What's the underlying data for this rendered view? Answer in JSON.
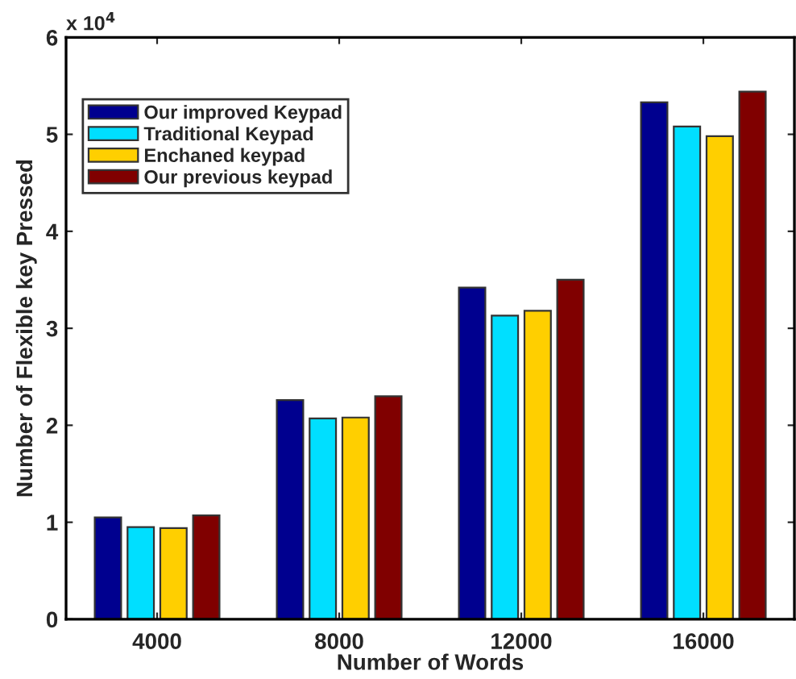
{
  "chart_data": {
    "type": "bar",
    "xlabel": "Number of Words",
    "ylabel": "Number of Flexible key Pressed",
    "categories": [
      "4000",
      "8000",
      "12000",
      "16000"
    ],
    "series": [
      {
        "name": "Our improved Keypad",
        "color": "#00008f",
        "values": [
          1.05,
          2.26,
          3.42,
          5.33
        ]
      },
      {
        "name": "Traditional Keypad",
        "color": "#00dfff",
        "values": [
          0.95,
          2.07,
          3.13,
          5.08
        ]
      },
      {
        "name": "Enchaned keypad",
        "color": "#ffcf00",
        "values": [
          0.94,
          2.08,
          3.18,
          4.98
        ]
      },
      {
        "name": "Our previous keypad",
        "color": "#800000",
        "values": [
          1.07,
          2.3,
          3.5,
          5.44
        ]
      }
    ],
    "ylim": [
      0,
      6
    ],
    "yticks": [
      0,
      1,
      2,
      3,
      4,
      5,
      6
    ],
    "annotations": [
      "x 10$^{4}$"
    ],
    "legend": "top left",
    "grid": false
  }
}
